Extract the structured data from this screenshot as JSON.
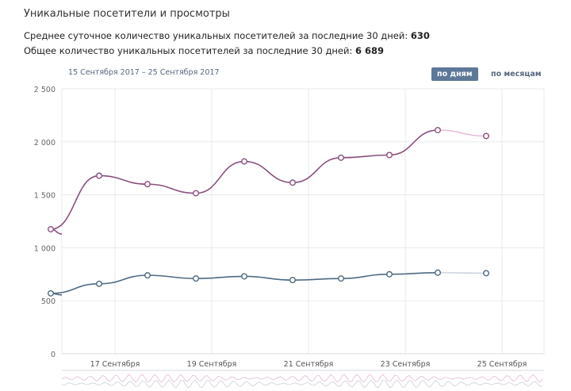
{
  "title": "Уникальные посетители и просмотры",
  "stats": [
    {
      "label": "Среднее суточное количество уникальных посетителей за последние 30 дней:",
      "value": "630"
    },
    {
      "label": "Общее количество уникальных посетителей за последние 30 дней:",
      "value": "6 689"
    }
  ],
  "date_range": "15 Сентября 2017 – 25 Сентября 2017",
  "buttons": {
    "days": "по дням",
    "months": "по месяцам"
  },
  "chart_data": {
    "type": "line",
    "ylim": [
      0,
      2500
    ],
    "yticks": [
      "0",
      "500",
      "1 000",
      "1 500",
      "2 000",
      "2 500"
    ],
    "ytick_values": [
      0,
      500,
      1000,
      1500,
      2000,
      2500
    ],
    "xtick_labels": [
      "17 Сентября",
      "19 Сентября",
      "21 Сентября",
      "23 Сентября",
      "25 Сентября"
    ],
    "xtick_days": [
      17,
      19,
      21,
      23,
      25
    ],
    "x_days": [
      15,
      16,
      17,
      18,
      19,
      20,
      21,
      22,
      23,
      24,
      25
    ],
    "grid": true,
    "series": [
      {
        "color": "#8a4f7d",
        "values": [
          1130,
          1175,
          1680,
          1600,
          1515,
          1815,
          1615,
          1850,
          1875,
          2110,
          2055
        ]
      },
      {
        "color": "#4e6a82",
        "values": [
          555,
          570,
          660,
          740,
          710,
          730,
          695,
          710,
          750,
          765,
          760
        ]
      }
    ]
  }
}
